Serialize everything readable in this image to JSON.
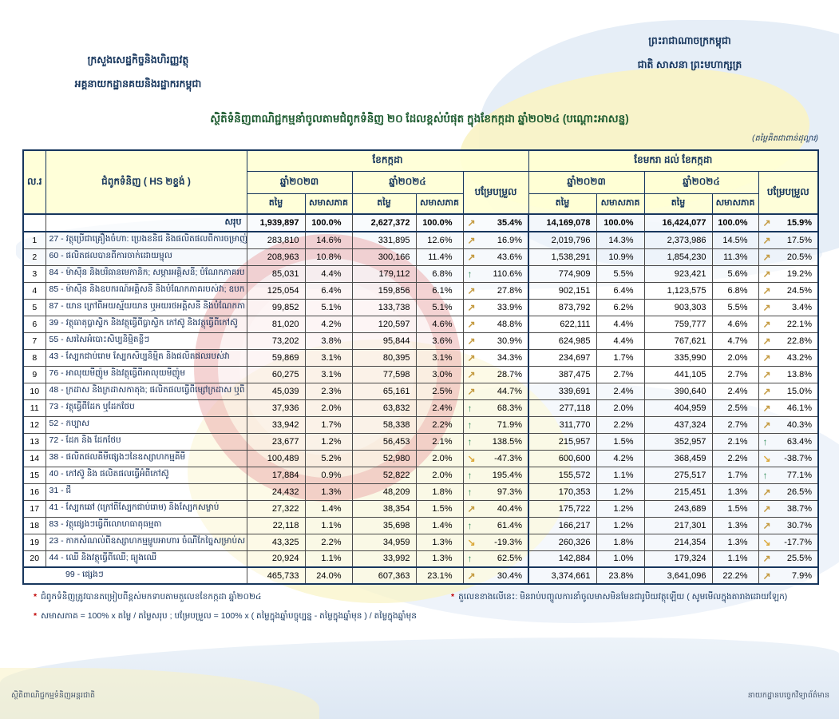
{
  "letterhead": {
    "ministry_line1": "ក្រសួងសេដ្ឋកិច្ចនិងហិរញ្ញវត្ថុ",
    "ministry_line2": "អគ្គនាយកដ្ឋានគយនិងរដ្ឋាករកម្ពុជា",
    "kingdom_line1": "ព្រះរាជាណាចក្រកម្ពុជា",
    "kingdom_line2": "ជាតិ សាសនា ព្រះមហាក្សត្រ"
  },
  "title": "ស្ថិតិទំនិញពាណិជ្ជកម្មនាំចូលតាមជំពូកទំនិញ ២០ ដែលខ្ពស់បំផុត ក្នុងខែកក្កដា ឆ្នាំ២០២៤ (បណ្តោះអាសន្ន)",
  "unit_note": "(តម្លៃគិតជាពាន់ដុល្លារ)",
  "icons": {
    "rise": "↗",
    "up": "↑",
    "fall": "↘"
  },
  "colors": {
    "navy": "#17365D",
    "title_green": "#1F5C31",
    "arrow_rise": "#C49A3F",
    "arrow_up": "#2E8B57",
    "arrow_fall": "#DCA93C",
    "header_bg": "#FFFFD6",
    "star_red": "#C00000"
  },
  "table": {
    "col_no": "ល.រ",
    "col_desc": "ជំពូកទំនិញ ( HS ២ខ្ទង់ )",
    "group_july": "ខែកក្កដា",
    "group_jan_july": "ខែមករា ដល់ ខែកក្កដា",
    "year_2023": "ឆ្នាំ២០២៣",
    "year_2024": "ឆ្នាំ២០២៤",
    "col_value": "តម្លៃ",
    "col_share": "សមាសភាគ",
    "col_change": "បម្រែបម្រួល",
    "total": {
      "label": "សរុប",
      "m": [
        "1,939,897",
        "100.0%",
        "2,627,372",
        "100.0%",
        "rise",
        "35.4%"
      ],
      "y": [
        "14,169,078",
        "100.0%",
        "16,424,077",
        "100.0%",
        "rise",
        "15.9%"
      ]
    },
    "rows": [
      {
        "no": "1",
        "desc": "27 - វត្ថុប្រើជាគ្រឿងចំហា: ប្រេងខនិជ និងផលិតផលពីការចម្រាញ់",
        "m": [
          "283,810",
          "14.6%",
          "331,895",
          "12.6%",
          "rise",
          "16.9%"
        ],
        "y": [
          "2,019,796",
          "14.3%",
          "2,373,986",
          "14.5%",
          "rise",
          "17.5%"
        ]
      },
      {
        "no": "2",
        "desc": "60 - ផលិតផលបានពីការចាក់ដោយម្ជុល",
        "m": [
          "208,963",
          "10.8%",
          "300,166",
          "11.4%",
          "rise",
          "43.6%"
        ],
        "y": [
          "1,538,291",
          "10.9%",
          "1,854,230",
          "11.3%",
          "rise",
          "20.5%"
        ]
      },
      {
        "no": "3",
        "desc": "84 - ម៉ាស៊ីន និងបរិធានមេកានិក; សម្ភារអគ្គិសនី; បំណែកភាគរប",
        "m": [
          "85,031",
          "4.4%",
          "179,112",
          "6.8%",
          "up",
          "110.6%"
        ],
        "y": [
          "774,909",
          "5.5%",
          "923,421",
          "5.6%",
          "rise",
          "19.2%"
        ]
      },
      {
        "no": "4",
        "desc": "85 - ម៉ាស៊ីន និងឧបករណ៍អគ្គិសនី និងបំណែកភាគរបស់វា; ឧបក",
        "m": [
          "125,054",
          "6.4%",
          "159,856",
          "6.1%",
          "rise",
          "27.8%"
        ],
        "y": [
          "902,151",
          "6.4%",
          "1,123,575",
          "6.8%",
          "rise",
          "24.5%"
        ]
      },
      {
        "no": "5",
        "desc": "87 - យាន ក្រៅពីអយស្ម័យយាន ឬអយរថអគ្គិសនី និងបំណែកភា",
        "m": [
          "99,852",
          "5.1%",
          "133,738",
          "5.1%",
          "rise",
          "33.9%"
        ],
        "y": [
          "873,792",
          "6.2%",
          "903,303",
          "5.5%",
          "rise",
          "3.4%"
        ]
      },
      {
        "no": "6",
        "desc": "39 - វត្ថុធាតុប្លាស្ទិក និងវត្ថុធ្វើពីប្លាស្ទិក កៅស៊ូ និងវត្ថុធ្វើពីកៅស៊ូ",
        "m": [
          "81,020",
          "4.2%",
          "120,597",
          "4.6%",
          "rise",
          "48.8%"
        ],
        "y": [
          "622,111",
          "4.4%",
          "759,777",
          "4.6%",
          "rise",
          "22.1%"
        ]
      },
      {
        "no": "7",
        "desc": "55 - សរសៃអំបោះសិប្បនិម្មិតខ្លីៗ",
        "m": [
          "73,202",
          "3.8%",
          "95,844",
          "3.6%",
          "rise",
          "30.9%"
        ],
        "y": [
          "624,985",
          "4.4%",
          "767,621",
          "4.7%",
          "rise",
          "22.8%"
        ]
      },
      {
        "no": "8",
        "desc": "43 - ស្បែកជាប់រោម ស្បែកសិប្បនិម្មិត និងផលិតផលរបស់វា",
        "m": [
          "59,869",
          "3.1%",
          "80,395",
          "3.1%",
          "rise",
          "34.3%"
        ],
        "y": [
          "234,697",
          "1.7%",
          "335,990",
          "2.0%",
          "rise",
          "43.2%"
        ]
      },
      {
        "no": "9",
        "desc": "76 - អាលុយមីញ៉ូម និងវត្ថុធ្វើពីអាលុយមីញ៉ូម",
        "m": [
          "60,275",
          "3.1%",
          "77,598",
          "3.0%",
          "rise",
          "28.7%"
        ],
        "y": [
          "387,475",
          "2.7%",
          "441,105",
          "2.7%",
          "rise",
          "13.8%"
        ]
      },
      {
        "no": "10",
        "desc": "48 - ក្រដាស និងក្រដាសកាតុង; ផលិតផលធ្វើពីម្សៅក្រដាស ឬពី",
        "m": [
          "45,039",
          "2.3%",
          "65,161",
          "2.5%",
          "rise",
          "44.7%"
        ],
        "y": [
          "339,691",
          "2.4%",
          "390,640",
          "2.4%",
          "rise",
          "15.0%"
        ]
      },
      {
        "no": "11",
        "desc": "73 - វត្ថុធ្វើពីដែក ឬដែកថែប",
        "m": [
          "37,936",
          "2.0%",
          "63,832",
          "2.4%",
          "up",
          "68.3%"
        ],
        "y": [
          "277,118",
          "2.0%",
          "404,959",
          "2.5%",
          "rise",
          "46.1%"
        ]
      },
      {
        "no": "12",
        "desc": "52 - កប្បាស",
        "m": [
          "33,942",
          "1.7%",
          "58,338",
          "2.2%",
          "up",
          "71.9%"
        ],
        "y": [
          "311,770",
          "2.2%",
          "437,324",
          "2.7%",
          "rise",
          "40.3%"
        ]
      },
      {
        "no": "13",
        "desc": "72 - ដែក និង ដែកថែប",
        "m": [
          "23,677",
          "1.2%",
          "56,453",
          "2.1%",
          "up",
          "138.5%"
        ],
        "y": [
          "215,957",
          "1.5%",
          "352,957",
          "2.1%",
          "up",
          "63.4%"
        ]
      },
      {
        "no": "14",
        "desc": "38 - ផលិតផលគីមីផ្សេងៗនៃឧស្សាហកម្មគីមី",
        "m": [
          "100,489",
          "5.2%",
          "52,980",
          "2.0%",
          "fall",
          "-47.3%"
        ],
        "y": [
          "600,600",
          "4.2%",
          "368,459",
          "2.2%",
          "fall",
          "-38.7%"
        ]
      },
      {
        "no": "15",
        "desc": "40 - កៅស៊ូ និង ផលិតផលធ្វើអំពីកៅស៊ូ",
        "m": [
          "17,884",
          "0.9%",
          "52,822",
          "2.0%",
          "up",
          "195.4%"
        ],
        "y": [
          "155,572",
          "1.1%",
          "275,517",
          "1.7%",
          "up",
          "77.1%"
        ]
      },
      {
        "no": "16",
        "desc": "31 - ជី",
        "m": [
          "24,432",
          "1.3%",
          "48,209",
          "1.8%",
          "up",
          "97.3%"
        ],
        "y": [
          "170,353",
          "1.2%",
          "215,451",
          "1.3%",
          "rise",
          "26.5%"
        ]
      },
      {
        "no": "17",
        "desc": "41 - ស្បែកឆៅ (ក្រៅពីស្បែកជាប់រោម) និងស្បែកសម្លាប់",
        "m": [
          "27,322",
          "1.4%",
          "38,354",
          "1.5%",
          "rise",
          "40.4%"
        ],
        "y": [
          "175,722",
          "1.2%",
          "243,689",
          "1.5%",
          "rise",
          "38.7%"
        ]
      },
      {
        "no": "18",
        "desc": "83 - វត្ថុផ្សេងៗធ្វើពីលោហធាតុធម្មតា",
        "m": [
          "22,118",
          "1.1%",
          "35,698",
          "1.4%",
          "up",
          "61.4%"
        ],
        "y": [
          "166,217",
          "1.2%",
          "217,301",
          "1.3%",
          "rise",
          "30.7%"
        ]
      },
      {
        "no": "19",
        "desc": "23 - កាកសំណល់ពីឧស្សាហកម្មម្ហូបអាហារ ចំណីកែច្នៃសម្រាប់ស",
        "m": [
          "43,325",
          "2.2%",
          "34,959",
          "1.3%",
          "fall",
          "-19.3%"
        ],
        "y": [
          "260,326",
          "1.8%",
          "214,354",
          "1.3%",
          "fall",
          "-17.7%"
        ]
      },
      {
        "no": "20",
        "desc": "44 - ឈើ និងវត្ថុធ្វើពីឈើ; ធ្យូងឈើ",
        "m": [
          "20,924",
          "1.1%",
          "33,992",
          "1.3%",
          "up",
          "62.5%"
        ],
        "y": [
          "142,884",
          "1.0%",
          "179,324",
          "1.1%",
          "rise",
          "25.5%"
        ]
      }
    ],
    "others_row": {
      "label": "99 - ផ្សេងៗ",
      "m": [
        "465,733",
        "24.0%",
        "607,363",
        "23.1%",
        "rise",
        "30.4%"
      ],
      "y": [
        "3,374,661",
        "23.8%",
        "3,641,096",
        "22.2%",
        "rise",
        "7.9%"
      ]
    }
  },
  "footnotes": {
    "fn1": "ជំពូកទំនិញត្រូវបានតម្រៀបពីខ្ពស់មកទាបតាមតួលេខខែកក្កដា ឆ្នាំ២០២៤",
    "fn2": "សមាសភាគ = 100% x តម្លៃ / តម្លៃសរុប ; បម្រែបម្រួល = 100% x ( តម្លៃក្នុងឆ្នាំបច្ចុប្បន្ន - តម្លៃក្នុងឆ្នាំមុន ) / តម្លៃក្នុងឆ្នាំមុន",
    "fn3": "តួលេខខាងលើនេះ: មិនរាប់បញ្ចូលការនាំចូលមាសមិនមែនជារូបិយវត្ថុឡើយ ( សូមមើលក្នុងតារាងដោយឡែក)"
  },
  "footer": {
    "left": "ស្ថិតិពាណិជ្ជកម្មទំនិញអន្តរជាតិ",
    "right": "នាយកដ្ឋានបច្ចេកវិទ្យាព័ត៌មាន"
  }
}
